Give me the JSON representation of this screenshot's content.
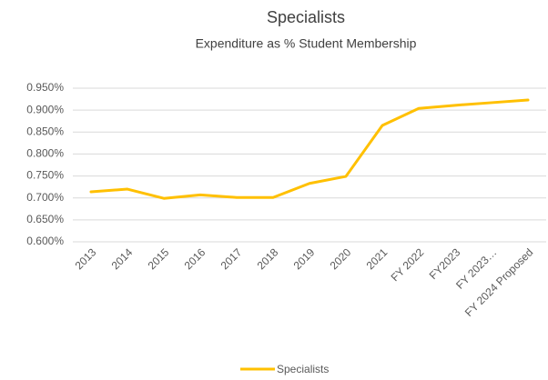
{
  "chart_data": {
    "type": "line",
    "title": "Specialists",
    "subtitle": "Expenditure as % Student Membership",
    "categories": [
      "2013",
      "2014",
      "2015",
      "2016",
      "2017",
      "2018",
      "2019",
      "2020",
      "2021",
      "FY 2022",
      "FY2023",
      "FY 2023…",
      "FY 2024 Proposed"
    ],
    "series": [
      {
        "name": "Specialists",
        "color": "#ffc000",
        "values": [
          0.714,
          0.72,
          0.699,
          0.707,
          0.701,
          0.701,
          0.733,
          0.749,
          0.865,
          0.904,
          0.911,
          0.917,
          0.923
        ]
      }
    ],
    "ylim": [
      0.6,
      0.95
    ],
    "yticks": [
      {
        "value": 0.6,
        "label": "0.600%"
      },
      {
        "value": 0.65,
        "label": "0.650%"
      },
      {
        "value": 0.7,
        "label": "0.700%"
      },
      {
        "value": 0.75,
        "label": "0.750%"
      },
      {
        "value": 0.8,
        "label": "0.800%"
      },
      {
        "value": 0.85,
        "label": "0.850%"
      },
      {
        "value": 0.9,
        "label": "0.900%"
      },
      {
        "value": 0.95,
        "label": "0.950%"
      }
    ],
    "grid": true,
    "legend": "bottom"
  }
}
